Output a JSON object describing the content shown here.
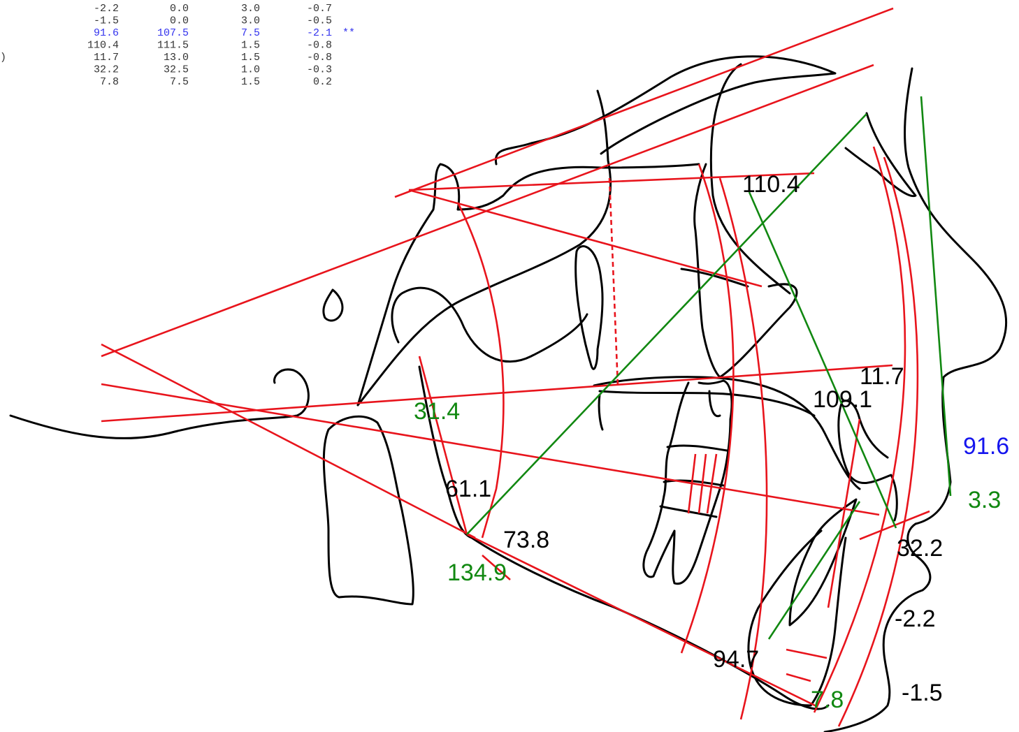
{
  "table": {
    "rows": [
      {
        "cells": [
          "-2.2",
          "0.0",
          "3.0",
          "-0.7"
        ]
      },
      {
        "cells": [
          "-1.5",
          "0.0",
          "3.0",
          "-0.5"
        ]
      },
      {
        "cells": [
          "91.6",
          "107.5",
          "7.5",
          "-2.1"
        ],
        "flag": "**"
      },
      {
        "cells": [
          "110.4",
          "111.5",
          "1.5",
          "-0.8"
        ]
      },
      {
        "prefix": ")",
        "cells": [
          "11.7",
          "13.0",
          "1.5",
          "-0.8"
        ]
      },
      {
        "cells": [
          "32.2",
          "32.5",
          "1.0",
          "-0.3"
        ]
      },
      {
        "cells": [
          "7.8",
          "7.5",
          "1.5",
          "0.2"
        ]
      }
    ]
  },
  "labels": [
    "110.4",
    "11.7",
    "109.1",
    "31.4",
    "91.6",
    "61.1",
    "3.3",
    "73.8",
    "32.2",
    "134.9",
    "-2.2",
    "94.7",
    "-1.5",
    "7.8"
  ]
}
